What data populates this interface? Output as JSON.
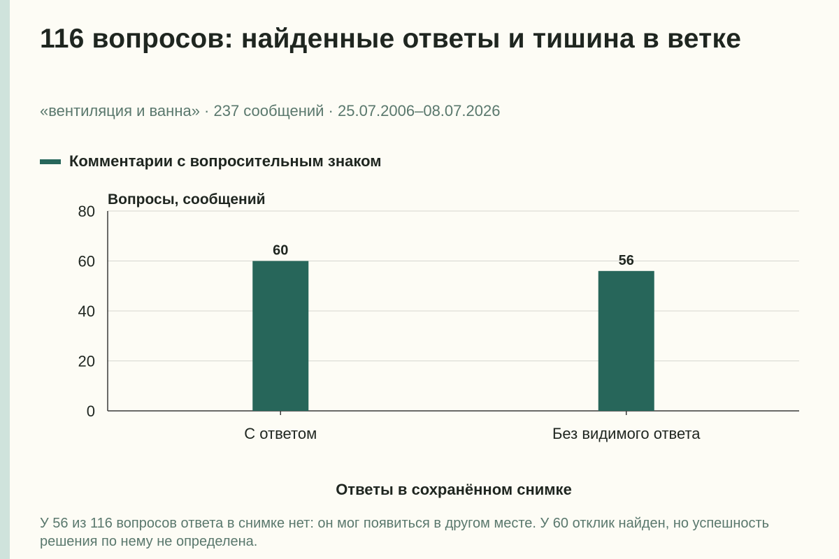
{
  "header": {
    "title": "116 вопросов: найденные ответы и тишина в ветке",
    "subtitle": "«вентиляция и ванна» · 237 сообщений · 25.07.2006–08.07.2026"
  },
  "colors": {
    "background": "#fdfcf5",
    "bar": "#27665a",
    "text": "#1f2620",
    "muted": "#5a786d",
    "grid": "#d6d6d0",
    "stripe": "#cfe3dc"
  },
  "chart_data": {
    "type": "bar",
    "title": "116 вопросов: найденные ответы и тишина в ветке",
    "subtitle": "«вентиляция и ванна» · 237 сообщений · 25.07.2006–08.07.2026",
    "categories": [
      "С ответом",
      "Без видимого ответа"
    ],
    "series": [
      {
        "name": "Комментарии с вопросительным знаком",
        "values": [
          60,
          56
        ]
      }
    ],
    "data_labels": [
      "60",
      "56"
    ],
    "xlabel": "Ответы в сохранённом снимке",
    "ylabel": "Вопросы, сообщений",
    "ylim": [
      0,
      80
    ],
    "yticks": [
      0,
      20,
      40,
      60,
      80
    ],
    "ytick_labels": [
      "0",
      "20",
      "40",
      "60",
      "80"
    ],
    "grid": true,
    "legend_position": "top-left"
  },
  "footnote": "У 56 из 116 вопросов ответа в снимке нет: он мог появиться в другом месте. У 60 отклик найден, но успешность решения по нему не определена."
}
